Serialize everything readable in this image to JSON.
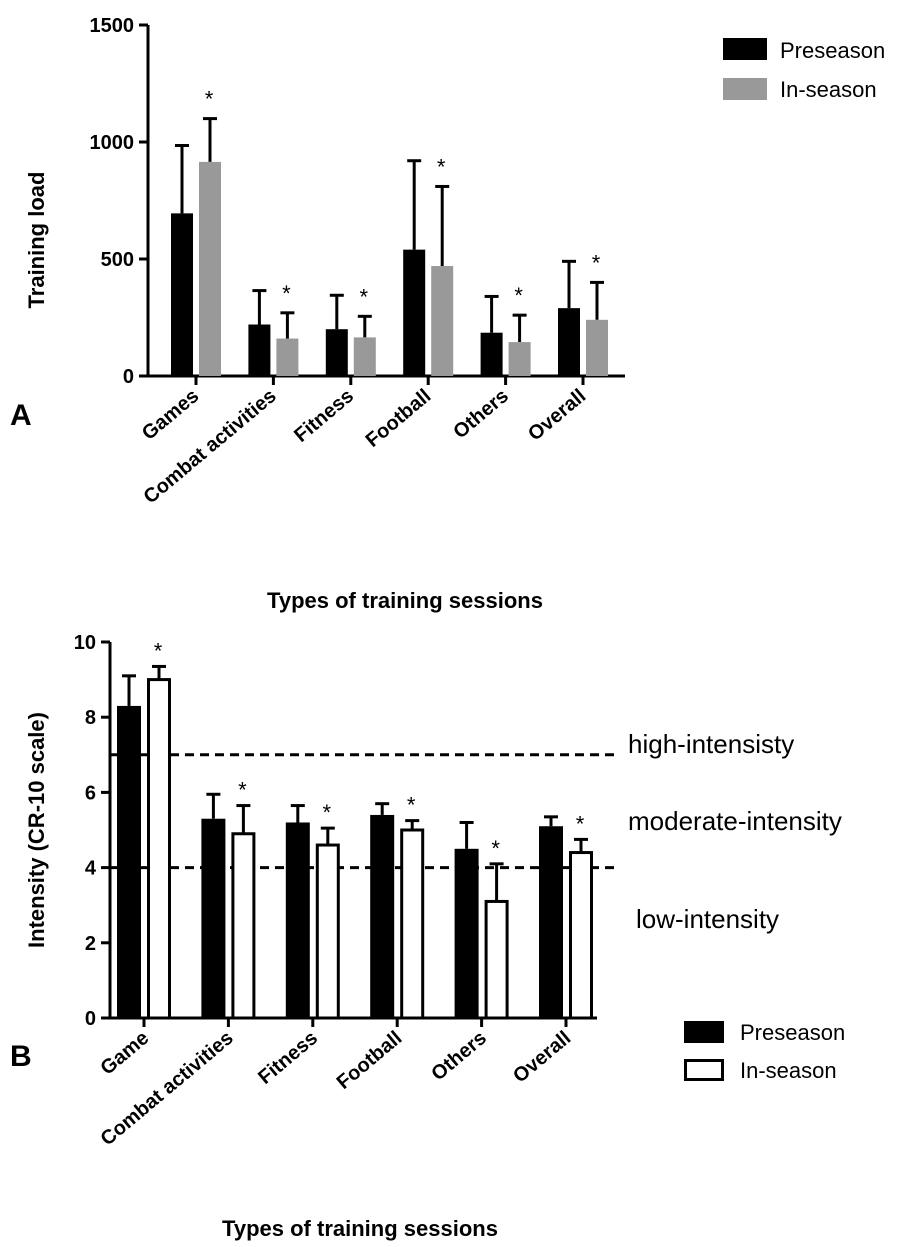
{
  "chart_data": [
    {
      "type": "bar",
      "panel_label": "A",
      "ylabel": "Training load",
      "xlabel": "Types of training sessions",
      "ylim": [
        0,
        1500
      ],
      "yticks": [
        "0",
        "500",
        "1000",
        "1500"
      ],
      "categories": [
        "Games",
        "Combat activities",
        "Fitness",
        "Football",
        "Others",
        "Overall"
      ],
      "series": [
        {
          "name": "Preseason",
          "color": "#000000",
          "values": [
            695,
            220,
            200,
            540,
            185,
            290
          ],
          "errors": [
            290,
            145,
            145,
            380,
            155,
            200
          ]
        },
        {
          "name": "In-season",
          "color": "#999999",
          "values": [
            915,
            160,
            165,
            470,
            145,
            240
          ],
          "errors": [
            185,
            110,
            90,
            340,
            115,
            160
          ]
        }
      ],
      "significance": [
        "*",
        "*",
        "*",
        "*",
        "*",
        "*"
      ],
      "legend_position": "top-right"
    },
    {
      "type": "bar",
      "panel_label": "B",
      "ylabel": "Intensity (CR-10 scale)",
      "xlabel": "Types of training sessions",
      "ylim": [
        0,
        10
      ],
      "yticks": [
        "0",
        "2",
        "4",
        "6",
        "8",
        "10"
      ],
      "categories": [
        "Game",
        "Combat activities",
        "Fitness",
        "Football",
        "Others",
        "Overall"
      ],
      "series": [
        {
          "name": "Preseason",
          "color": "#000000",
          "values": [
            8.3,
            5.3,
            5.2,
            5.4,
            4.5,
            5.1
          ],
          "errors": [
            0.8,
            0.65,
            0.45,
            0.3,
            0.7,
            0.25
          ]
        },
        {
          "name": "In-season",
          "color": "#ffffff",
          "values": [
            9.0,
            4.9,
            4.6,
            5.0,
            3.1,
            4.4
          ],
          "errors": [
            0.35,
            0.75,
            0.45,
            0.25,
            1.0,
            0.35
          ]
        }
      ],
      "significance": [
        "*",
        "*",
        "*",
        "*",
        "*",
        "*"
      ],
      "thresholds": [
        7,
        4
      ],
      "zones": [
        "high-intensisty",
        "moderate-intensity",
        "low-intensity"
      ],
      "legend_position": "bottom-right"
    }
  ]
}
